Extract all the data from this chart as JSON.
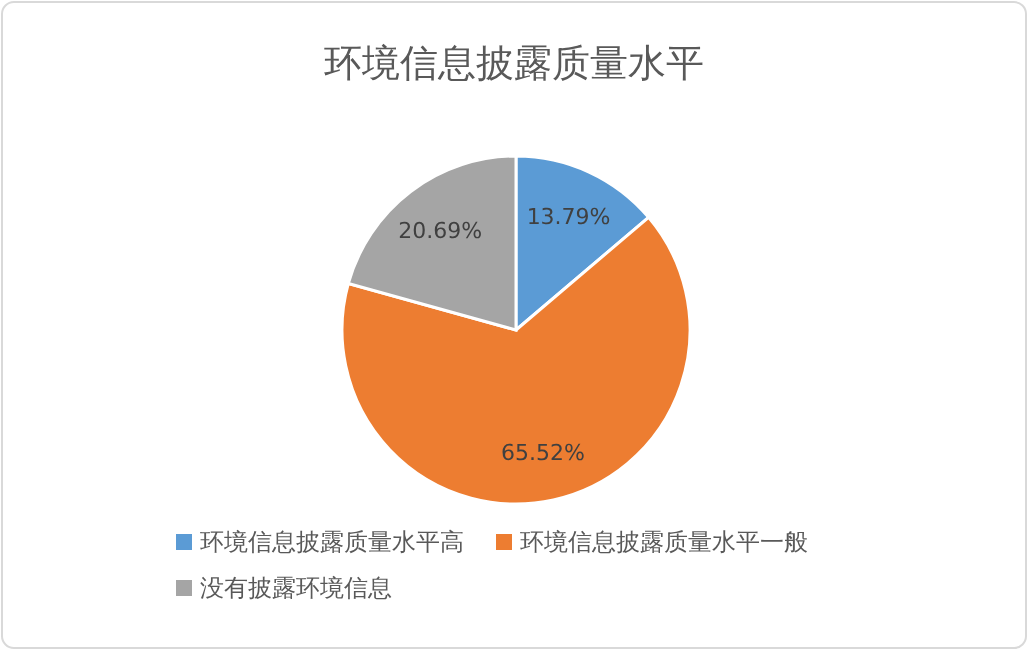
{
  "chart_data": {
    "type": "pie",
    "title": "环境信息披露质量水平",
    "categories": [
      "环境信息披露质量水平高",
      "环境信息披露质量水平一般",
      "没有披露环境信息"
    ],
    "values": [
      13.79,
      65.52,
      20.69
    ],
    "colors": [
      "#5b9bd5",
      "#ed7d31",
      "#a5a5a5"
    ],
    "value_labels": [
      "13.79%",
      "65.52%",
      "20.69%"
    ],
    "legend": "bottom"
  }
}
